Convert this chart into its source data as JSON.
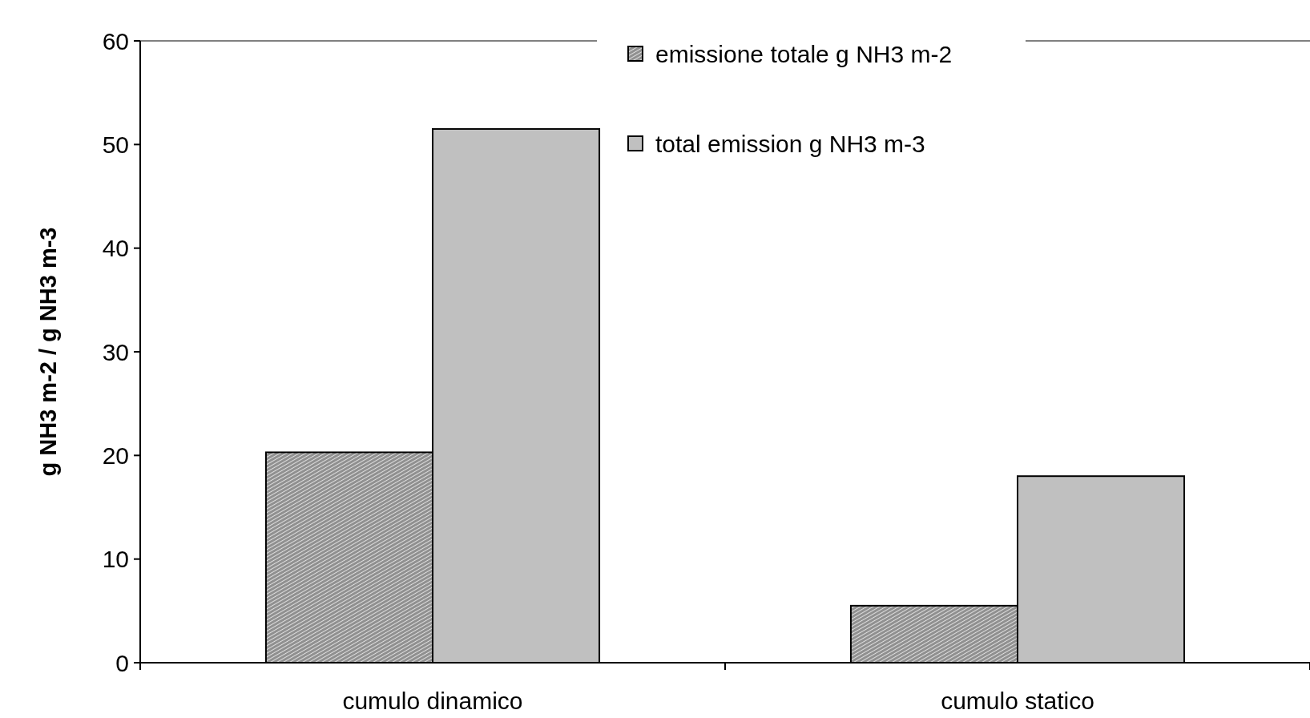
{
  "chart_data": {
    "type": "bar",
    "ylabel": "g NH3 m-2 / g NH3 m-3",
    "categories": [
      "cumulo dinamico",
      "cumulo statico"
    ],
    "series": [
      {
        "name": "emissione totale g NH3 m-2",
        "color": "#909090",
        "values": [
          20.3,
          5.5
        ]
      },
      {
        "name": "total emission g NH3 m-3",
        "color": "#c0c0c0",
        "values": [
          51.5,
          18
        ]
      }
    ],
    "ylim": [
      0,
      60
    ],
    "yticks": [
      0,
      10,
      20,
      30,
      40,
      50,
      60
    ],
    "legend": "top",
    "grid": false
  }
}
